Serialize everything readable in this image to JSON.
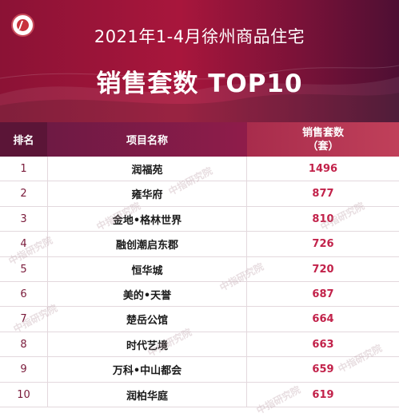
{
  "header": {
    "title_line1": "2021年1-4月徐州商品住宅",
    "title_line2": "销售套数 TOP10"
  },
  "table": {
    "col_rank": "排名",
    "col_name": "项目名称",
    "col_sales_line1": "销售套数",
    "col_sales_line2": "（套）",
    "rows": [
      {
        "rank": "1",
        "name": "润福苑",
        "sales": "1496"
      },
      {
        "rank": "2",
        "name": "雍华府",
        "sales": "877"
      },
      {
        "rank": "3",
        "name": "金地•格林世界",
        "sales": "810"
      },
      {
        "rank": "4",
        "name": "融创潮启东郡",
        "sales": "726"
      },
      {
        "rank": "5",
        "name": "恒华城",
        "sales": "720"
      },
      {
        "rank": "6",
        "name": "美的•天誉",
        "sales": "687"
      },
      {
        "rank": "7",
        "name": "楚岳公馆",
        "sales": "664"
      },
      {
        "rank": "8",
        "name": "时代艺境",
        "sales": "663"
      },
      {
        "rank": "9",
        "name": "万科•中山都会",
        "sales": "659"
      },
      {
        "rank": "10",
        "name": "润柏华庭",
        "sales": "619"
      }
    ]
  },
  "watermark": "中指研究院",
  "colors": {
    "brand_dark": "#5b1537",
    "brand_red": "#a8163c",
    "value_red": "#c2224a"
  }
}
